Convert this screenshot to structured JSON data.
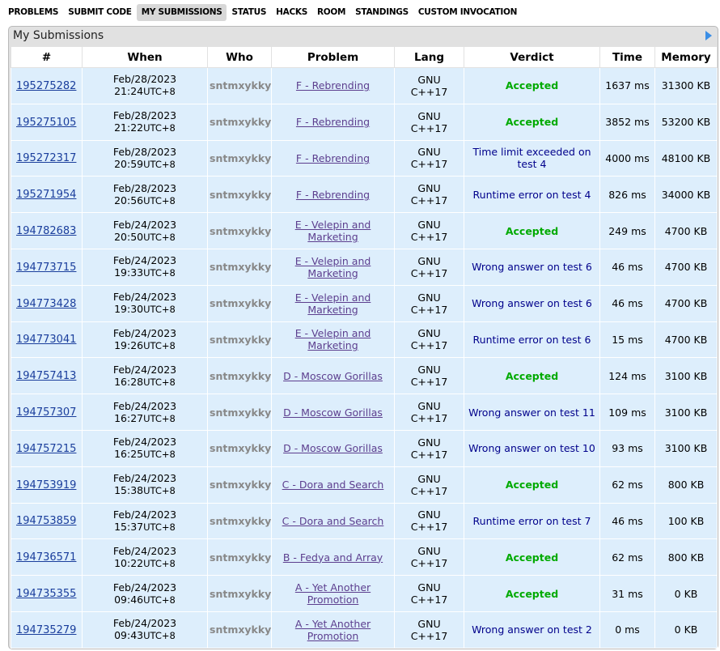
{
  "nav": [
    "PROBLEMS",
    "SUBMIT CODE",
    "MY SUBMISSIONS",
    "STATUS",
    "HACKS",
    "ROOM",
    "STANDINGS",
    "CUSTOM INVOCATION"
  ],
  "title": "My Submissions",
  "table": {
    "headers": [
      "#",
      "When",
      "Who",
      "Problem",
      "Lang",
      "Verdict",
      "Time",
      "Memory"
    ],
    "rows": [
      {
        "id": "195275282",
        "date": "Feb/28/2023",
        "time": "21:24",
        "tz": "UTC+8",
        "who": "sntmxykky",
        "problem": "F - Rebrending",
        "lang": "GNU C++17",
        "verdict": "Accepted",
        "verdict_color": "#0a0",
        "run_time": "1637 ms",
        "memory": "31300 KB"
      },
      {
        "id": "195275105",
        "date": "Feb/28/2023",
        "time": "21:22",
        "tz": "UTC+8",
        "who": "sntmxykky",
        "problem": "F - Rebrending",
        "lang": "GNU C++17",
        "verdict": "Accepted",
        "verdict_color": "#0a0",
        "run_time": "3852 ms",
        "memory": "53200 KB"
      },
      {
        "id": "195272317",
        "date": "Feb/28/2023",
        "time": "20:59",
        "tz": "UTC+8",
        "who": "sntmxykky",
        "problem": "F - Rebrending",
        "lang": "GNU C++17",
        "verdict": "Time limit exceeded on test 4",
        "verdict_color": "#00008b",
        "run_time": "4000 ms",
        "memory": "48100 KB"
      },
      {
        "id": "195271954",
        "date": "Feb/28/2023",
        "time": "20:56",
        "tz": "UTC+8",
        "who": "sntmxykky",
        "problem": "F - Rebrending",
        "lang": "GNU C++17",
        "verdict": "Runtime error on test 4",
        "verdict_color": "#00008b",
        "run_time": "826 ms",
        "memory": "34000 KB"
      },
      {
        "id": "194782683",
        "date": "Feb/24/2023",
        "time": "20:50",
        "tz": "UTC+8",
        "who": "sntmxykky",
        "problem": "E - Velepin and Marketing",
        "lang": "GNU C++17",
        "verdict": "Accepted",
        "verdict_color": "#0a0",
        "run_time": "249 ms",
        "memory": "4700 KB"
      },
      {
        "id": "194773715",
        "date": "Feb/24/2023",
        "time": "19:33",
        "tz": "UTC+8",
        "who": "sntmxykky",
        "problem": "E - Velepin and Marketing",
        "lang": "GNU C++17",
        "verdict": "Wrong answer on test 6",
        "verdict_color": "#00008b",
        "run_time": "46 ms",
        "memory": "4700 KB"
      },
      {
        "id": "194773428",
        "date": "Feb/24/2023",
        "time": "19:30",
        "tz": "UTC+8",
        "who": "sntmxykky",
        "problem": "E - Velepin and Marketing",
        "lang": "GNU C++17",
        "verdict": "Wrong answer on test 6",
        "verdict_color": "#00008b",
        "run_time": "46 ms",
        "memory": "4700 KB"
      },
      {
        "id": "194773041",
        "date": "Feb/24/2023",
        "time": "19:26",
        "tz": "UTC+8",
        "who": "sntmxykky",
        "problem": "E - Velepin and Marketing",
        "lang": "GNU C++17",
        "verdict": "Runtime error on test 6",
        "verdict_color": "#00008b",
        "run_time": "15 ms",
        "memory": "4700 KB"
      },
      {
        "id": "194757413",
        "date": "Feb/24/2023",
        "time": "16:28",
        "tz": "UTC+8",
        "who": "sntmxykky",
        "problem": "D - Moscow Gorillas",
        "lang": "GNU C++17",
        "verdict": "Accepted",
        "verdict_color": "#0a0",
        "run_time": "124 ms",
        "memory": "3100 KB"
      },
      {
        "id": "194757307",
        "date": "Feb/24/2023",
        "time": "16:27",
        "tz": "UTC+8",
        "who": "sntmxykky",
        "problem": "D - Moscow Gorillas",
        "lang": "GNU C++17",
        "verdict": "Wrong answer on test 11",
        "verdict_color": "#00008b",
        "run_time": "109 ms",
        "memory": "3100 KB"
      },
      {
        "id": "194757215",
        "date": "Feb/24/2023",
        "time": "16:25",
        "tz": "UTC+8",
        "who": "sntmxykky",
        "problem": "D - Moscow Gorillas",
        "lang": "GNU C++17",
        "verdict": "Wrong answer on test 10",
        "verdict_color": "#00008b",
        "run_time": "93 ms",
        "memory": "3100 KB"
      },
      {
        "id": "194753919",
        "date": "Feb/24/2023",
        "time": "15:38",
        "tz": "UTC+8",
        "who": "sntmxykky",
        "problem": "C - Dora and Search",
        "lang": "GNU C++17",
        "verdict": "Accepted",
        "verdict_color": "#0a0",
        "run_time": "62 ms",
        "memory": "800 KB"
      },
      {
        "id": "194753859",
        "date": "Feb/24/2023",
        "time": "15:37",
        "tz": "UTC+8",
        "who": "sntmxykky",
        "problem": "C - Dora and Search",
        "lang": "GNU C++17",
        "verdict": "Runtime error on test 7",
        "verdict_color": "#00008b",
        "run_time": "46 ms",
        "memory": "100 KB"
      },
      {
        "id": "194736571",
        "date": "Feb/24/2023",
        "time": "10:22",
        "tz": "UTC+8",
        "who": "sntmxykky",
        "problem": "B - Fedya and Array",
        "lang": "GNU C++17",
        "verdict": "Accepted",
        "verdict_color": "#0a0",
        "run_time": "62 ms",
        "memory": "800 KB"
      },
      {
        "id": "194735355",
        "date": "Feb/24/2023",
        "time": "09:46",
        "tz": "UTC+8",
        "who": "sntmxykky",
        "problem": "A - Yet Another Promotion",
        "lang": "GNU C++17",
        "verdict": "Accepted",
        "verdict_color": "#0a0",
        "run_time": "31 ms",
        "memory": "0 KB"
      },
      {
        "id": "194735279",
        "date": "Feb/24/2023",
        "time": "09:43",
        "tz": "UTC+8",
        "who": "sntmxykky",
        "problem": "A - Yet Another Promotion",
        "lang": "GNU C++17",
        "verdict": "Wrong answer on test 2",
        "verdict_color": "#00008b",
        "run_time": "0 ms",
        "memory": "0 KB"
      }
    ]
  }
}
